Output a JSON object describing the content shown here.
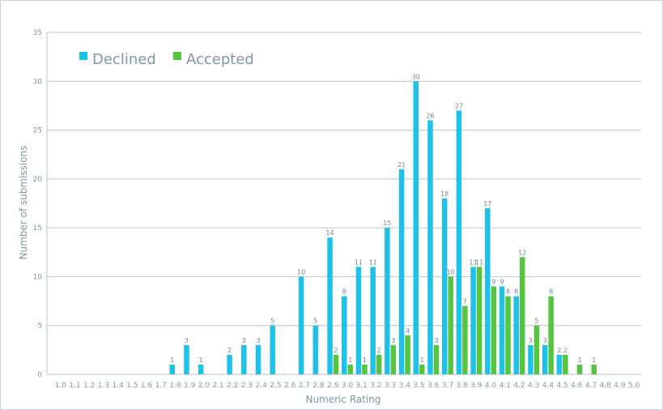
{
  "chart_data": {
    "type": "bar",
    "title": "",
    "xlabel": "Numeric Rating",
    "ylabel": "Number of submissions",
    "ylim": [
      0,
      35
    ],
    "yticks": [
      0,
      5,
      10,
      15,
      20,
      25,
      30,
      35
    ],
    "grid": true,
    "legend_position": "top-left",
    "categories": [
      "1.0",
      "1.1",
      "1.2",
      "1.3",
      "1.4",
      "1.5",
      "1.6",
      "1.7",
      "1.8",
      "1.9",
      "2.0",
      "2.1",
      "2.2",
      "2.3",
      "2.4",
      "2.5",
      "2.6",
      "2.7",
      "2.8",
      "2.9",
      "3.0",
      "3.1",
      "3.2",
      "3.3",
      "3.4",
      "3.5",
      "3.6",
      "3.7",
      "3.8",
      "3.9",
      "4.0",
      "4.1",
      "4.2",
      "4.3",
      "4.4",
      "4.5",
      "4.6",
      "4.7",
      "4.8",
      "4.9",
      "5.0"
    ],
    "series": [
      {
        "name": "Declined",
        "color": "#1ec2e8",
        "values": [
          0,
          0,
          0,
          0,
          0,
          0,
          0,
          0,
          1,
          3,
          1,
          0,
          2,
          3,
          3,
          5,
          0,
          10,
          5,
          14,
          8,
          11,
          11,
          15,
          21,
          30,
          26,
          18,
          27,
          11,
          17,
          9,
          8,
          3,
          3,
          2,
          0,
          0,
          0,
          0,
          0
        ]
      },
      {
        "name": "Accepted",
        "color": "#55c43e",
        "values": [
          0,
          0,
          0,
          0,
          0,
          0,
          0,
          0,
          0,
          0,
          0,
          0,
          0,
          0,
          0,
          0,
          0,
          0,
          0,
          2,
          1,
          1,
          2,
          3,
          4,
          1,
          3,
          10,
          7,
          11,
          9,
          8,
          12,
          5,
          8,
          2,
          1,
          1,
          0,
          0,
          0
        ]
      }
    ]
  }
}
